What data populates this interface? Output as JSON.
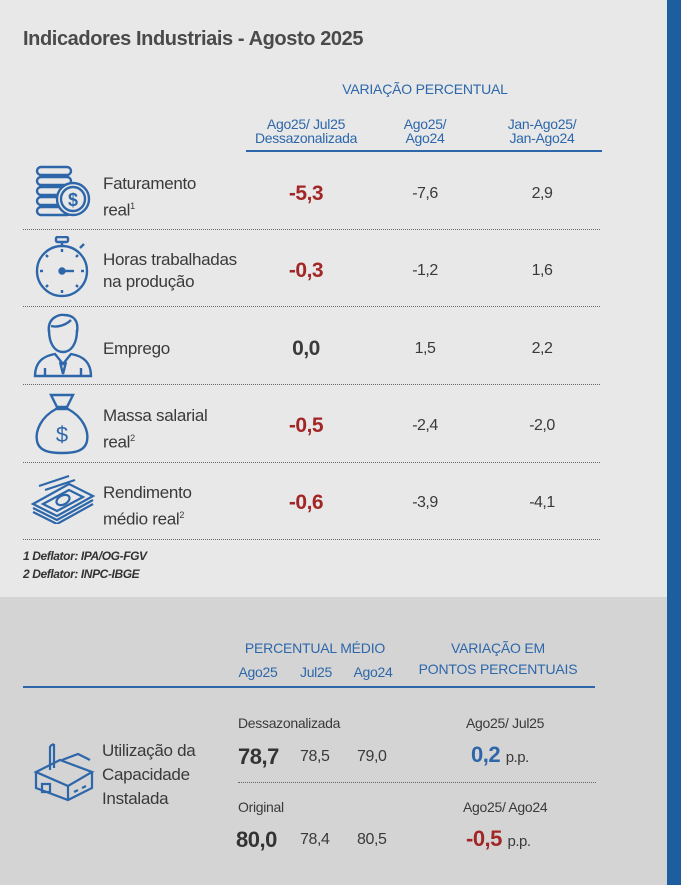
{
  "title": "Indicadores Industriais - Agosto 2025",
  "variacao_header": "VARIAÇÃO PERCENTUAL",
  "columns": {
    "c1_line1": "Ago25/ Jul25",
    "c1_line2": "Dessazonalizada",
    "c2_line1": "Ago25/",
    "c2_line2": "Ago24",
    "c3_line1": "Jan-Ago25/",
    "c3_line2": "Jan-Ago24"
  },
  "rows": [
    {
      "label1": "Faturamento",
      "label2": "real",
      "sup": "1",
      "icon": "money-coins-icon",
      "main": "-5,3",
      "v2": "-7,6",
      "v3": "2,9"
    },
    {
      "label1": "Horas trabalhadas",
      "label2": "na produção",
      "sup": "",
      "icon": "stopwatch-icon",
      "main": "-0,3",
      "v2": "-1,2",
      "v3": "1,6"
    },
    {
      "label1": "Emprego",
      "label2": "",
      "sup": "",
      "icon": "worker-icon",
      "main": "0,0",
      "v2": "1,5",
      "v3": "2,2"
    },
    {
      "label1": "Massa salarial",
      "label2": "real",
      "sup": "2",
      "icon": "money-bag-icon",
      "main": "-0,5",
      "v2": "-2,4",
      "v3": "-2,0"
    },
    {
      "label1": "Rendimento",
      "label2": "médio real",
      "sup": "2",
      "icon": "banknotes-icon",
      "main": "-0,6",
      "v2": "-3,9",
      "v3": "-4,1"
    }
  ],
  "notes": {
    "n1": "1 Deflator: IPA/OG-FGV",
    "n2": "2 Deflator: INPC-IBGE"
  },
  "capacity": {
    "header_left": "PERCENTUAL MÉDIO",
    "header_right_1": "VARIAÇÃO EM",
    "header_right_2": "PONTOS PERCENTUAIS",
    "months": [
      "Ago25",
      "Jul25",
      "Ago24"
    ],
    "label1": "Utilização da",
    "label2": "Capacidade",
    "label3": "Instalada",
    "icon": "factory-icon",
    "dess_label": "Dessazonalizada",
    "dess_values": [
      "78,7",
      "78,5",
      "79,0"
    ],
    "dess_cmp_label": "Ago25/ Jul25",
    "dess_pp": "0,2",
    "orig_label": "Original",
    "orig_values": [
      "80,0",
      "78,4",
      "80,5"
    ],
    "orig_cmp_label": "Ago25/ Ago24",
    "orig_pp": "-0,5",
    "pp_unit": "p.p."
  },
  "colors": {
    "negative": "#a32626",
    "positive": "#2d67a9",
    "accent": "#1c5e9e"
  }
}
